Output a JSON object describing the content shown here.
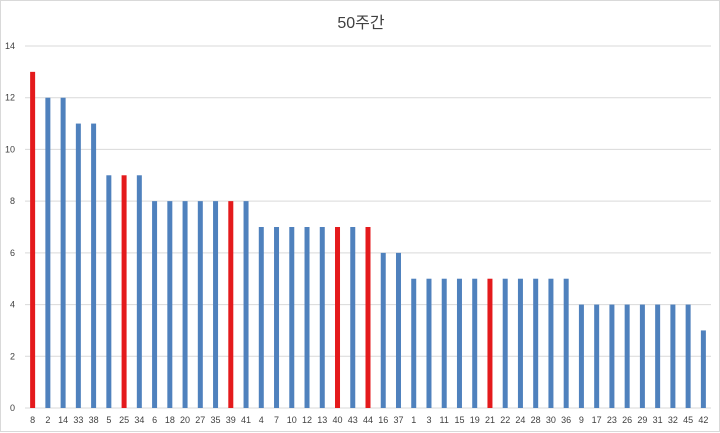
{
  "chart_data": {
    "type": "bar",
    "title": "50주간",
    "xlabel": "",
    "ylabel": "",
    "ylim": [
      0,
      14
    ],
    "yticks": [
      0,
      2,
      4,
      6,
      8,
      10,
      12,
      14
    ],
    "grid": true,
    "legend": "none",
    "colors": {
      "default": "#4f81bd",
      "highlight": "#e41a1c"
    },
    "categories": [
      "8",
      "2",
      "14",
      "33",
      "38",
      "5",
      "25",
      "34",
      "6",
      "18",
      "20",
      "27",
      "35",
      "39",
      "41",
      "4",
      "7",
      "10",
      "12",
      "13",
      "40",
      "43",
      "44",
      "16",
      "37",
      "1",
      "3",
      "11",
      "15",
      "19",
      "21",
      "22",
      "24",
      "28",
      "30",
      "36",
      "9",
      "17",
      "23",
      "26",
      "29",
      "31",
      "32",
      "45",
      "42"
    ],
    "values": [
      13,
      12,
      12,
      11,
      11,
      9,
      9,
      9,
      8,
      8,
      8,
      8,
      8,
      8,
      8,
      7,
      7,
      7,
      7,
      7,
      7,
      7,
      7,
      6,
      6,
      5,
      5,
      5,
      5,
      5,
      5,
      5,
      5,
      5,
      5,
      5,
      4,
      4,
      4,
      4,
      4,
      4,
      4,
      4,
      3
    ],
    "highlighted": [
      "8",
      "25",
      "39",
      "40",
      "44",
      "21"
    ]
  }
}
